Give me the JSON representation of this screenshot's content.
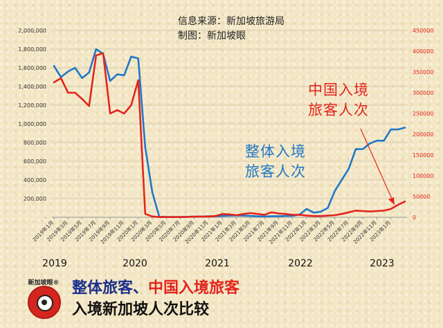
{
  "source_line1": "信息来源：新加坡旅游局",
  "source_line2": "制图：新加坡眼",
  "annotation_china": [
    "中国入境",
    "旅客人次"
  ],
  "annotation_total": [
    "整体入境",
    "旅客人次"
  ],
  "footer": {
    "total_label": "整体旅客",
    "separator": "、",
    "china_label": "中国入境旅客",
    "subtitle": "入境新加坡人次比较"
  },
  "logo": {
    "name_text": "新加坡眼®",
    "icon": "eye-icon"
  },
  "colors": {
    "total": "#1f78c8",
    "china": "#e3241c",
    "footer_total": "#1a2f8a"
  },
  "chart_data": {
    "type": "line",
    "x_tick_labels": [
      "2019年1月",
      "2019年3月",
      "2019年5月",
      "2019年7月",
      "2019年9月",
      "2019年11月",
      "2020年1月",
      "2020年3月",
      "2020年5月",
      "2020年7月",
      "2020年9月",
      "2020年11月",
      "2021年1月",
      "2021年3月",
      "2021年5月",
      "2021年7月",
      "2021年9月",
      "2021年11月",
      "2022年1月",
      "2022年3月",
      "2022年5月",
      "2022年7月",
      "2022年9月",
      "2022年11月",
      "2023年1月"
    ],
    "year_labels": [
      "2019",
      "2020",
      "2021",
      "2022",
      "2023"
    ],
    "y_left": {
      "min": 0,
      "max": 2000000,
      "ticks": [
        "-",
        "200,000",
        "400,000",
        "600,000",
        "800,000",
        "1,000,000",
        "1,200,000",
        "1,400,000",
        "1,600,000",
        "1,800,000",
        "2,000,000"
      ]
    },
    "y_right": {
      "min": 0,
      "max": 450000,
      "ticks": [
        "0",
        "50000",
        "100000",
        "150000",
        "200000",
        "250000",
        "300000",
        "350000",
        "400000",
        "450000"
      ]
    },
    "grid": true,
    "series": [
      {
        "axis": "left",
        "values": [
          1620000,
          1500000,
          1560000,
          1600000,
          1490000,
          1550000,
          1800000,
          1750000,
          1460000,
          1530000,
          1520000,
          1720000,
          1700000,
          750000,
          270000,
          5000,
          3000,
          3000,
          4000,
          5000,
          7000,
          8000,
          10000,
          12000,
          15000,
          18000,
          20000,
          18000,
          15000,
          10000,
          8000,
          12000,
          12000,
          15000,
          16000,
          30000,
          90000,
          50000,
          60000,
          100000,
          280000,
          400000,
          520000,
          730000,
          730000,
          790000,
          820000,
          820000,
          940000,
          940000,
          960000
        ]
      },
      {
        "axis": "right",
        "values": [
          325000,
          335000,
          300000,
          300000,
          285000,
          268000,
          390000,
          395000,
          250000,
          258000,
          250000,
          270000,
          330000,
          8000,
          2000,
          500,
          500,
          500,
          500,
          1000,
          1500,
          1500,
          2000,
          3000,
          8000,
          7000,
          5000,
          8000,
          10000,
          8000,
          6000,
          12000,
          9000,
          8000,
          6000,
          6000,
          4000,
          3000,
          3000,
          4000,
          5000,
          8000,
          12000,
          16000,
          15000,
          14000,
          15000,
          16000,
          20000,
          30000,
          38000
        ]
      }
    ]
  }
}
